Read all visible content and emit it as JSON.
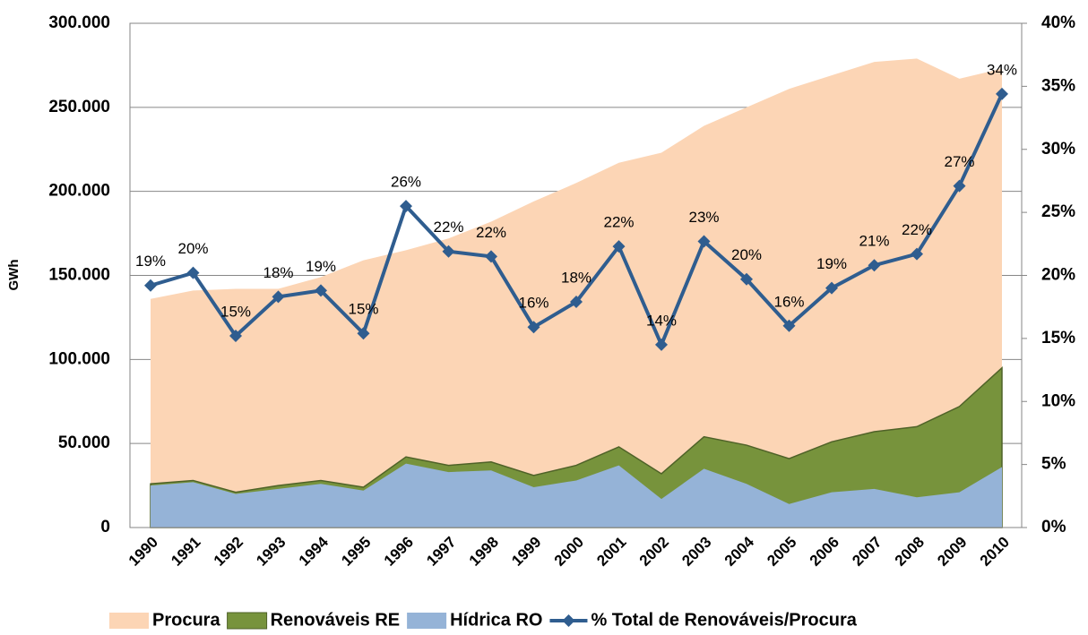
{
  "chart_data": {
    "type": "area_line",
    "y_label": "GWh",
    "categories": [
      "1990",
      "1991",
      "1992",
      "1993",
      "1994",
      "1995",
      "1996",
      "1997",
      "1998",
      "1999",
      "2000",
      "2001",
      "2002",
      "2003",
      "2004",
      "2005",
      "2006",
      "2007",
      "2008",
      "2009",
      "2010"
    ],
    "series": [
      {
        "name": "Procura",
        "color": "#fcd5b5",
        "values": [
          136000,
          141000,
          142000,
          142000,
          149000,
          159000,
          165000,
          172000,
          182000,
          194000,
          205000,
          217000,
          223000,
          239000,
          250000,
          261000,
          269000,
          277000,
          279000,
          267000,
          273000
        ]
      },
      {
        "name": "Renováveis RE",
        "color": "#77933c",
        "values": [
          26000,
          28000,
          21000,
          25000,
          28000,
          24000,
          42000,
          37000,
          39000,
          31000,
          37000,
          48000,
          32000,
          54000,
          49000,
          41000,
          51000,
          57000,
          60000,
          72000,
          95000
        ]
      },
      {
        "name": "Hídrica RO",
        "color": "#95b3d7",
        "values": [
          25000,
          27000,
          20000,
          23000,
          26000,
          22000,
          38000,
          33000,
          34000,
          24000,
          28000,
          37000,
          17000,
          35000,
          26000,
          14000,
          21000,
          23000,
          18000,
          21000,
          36000
        ]
      },
      {
        "name": "% Total de Renováveis/Procura",
        "color": "#2f5d8f",
        "axis": "y2",
        "values": [
          19.2,
          20.2,
          15.2,
          18.3,
          18.8,
          15.4,
          25.5,
          21.9,
          21.5,
          15.9,
          17.9,
          22.3,
          14.5,
          22.7,
          19.7,
          16.0,
          19.0,
          20.8,
          21.7,
          27.1,
          34.4
        ],
        "value_labels": [
          "19%",
          "20%",
          "15%",
          "18%",
          "19%",
          "15%",
          "26%",
          "22%",
          "22%",
          "16%",
          "18%",
          "22%",
          "14%",
          "23%",
          "20%",
          "16%",
          "19%",
          "21%",
          "22%",
          "27%",
          "34%"
        ]
      }
    ],
    "ylim": [
      0,
      300000
    ],
    "yticks": [
      {
        "value": 0,
        "label": "0"
      },
      {
        "value": 50000,
        "label": "50.000"
      },
      {
        "value": 100000,
        "label": "100.000"
      },
      {
        "value": 150000,
        "label": "150.000"
      },
      {
        "value": 200000,
        "label": "200.000"
      },
      {
        "value": 250000,
        "label": "250.000"
      },
      {
        "value": 300000,
        "label": "300.000"
      }
    ],
    "y2lim": [
      0,
      40
    ],
    "y2ticks": [
      {
        "value": 0,
        "label": "0%"
      },
      {
        "value": 5,
        "label": "5%"
      },
      {
        "value": 10,
        "label": "10%"
      },
      {
        "value": 15,
        "label": "15%"
      },
      {
        "value": 20,
        "label": "20%"
      },
      {
        "value": 25,
        "label": "25%"
      },
      {
        "value": 30,
        "label": "30%"
      },
      {
        "value": 35,
        "label": "35%"
      },
      {
        "value": 40,
        "label": "40%"
      }
    ],
    "grid": true,
    "legend": "bottom"
  }
}
